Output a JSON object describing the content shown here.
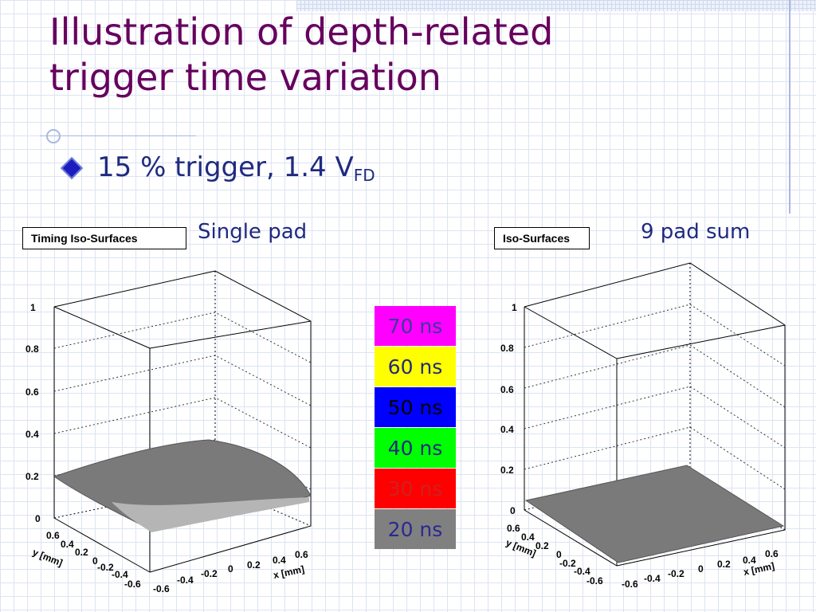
{
  "slide": {
    "title_line1": "Illustration of depth-related",
    "title_line2": "trigger time variation",
    "bullet_main": "15 % trigger, 1.4 V",
    "bullet_sub": "FD"
  },
  "left_plot": {
    "box_label": "Timing Iso-Surfaces",
    "caption": "Single pad",
    "z_ticks": [
      "1",
      "0.8",
      "0.6",
      "0.4",
      "0.2",
      "0"
    ],
    "y_ticks": [
      "0.6",
      "0.4",
      "0.2",
      "0",
      "-0.2",
      "-0.4",
      "-0.6"
    ],
    "x_ticks": [
      "-0.6",
      "-0.4",
      "-0.2",
      "0",
      "0.2",
      "0.4",
      "0.6"
    ],
    "y_title": "y [mm]",
    "x_title": "x [mm]"
  },
  "right_plot": {
    "box_label": "Iso-Surfaces",
    "caption": "9 pad sum",
    "z_ticks": [
      "1",
      "0.8",
      "0.6",
      "0.4",
      "0.2",
      "0"
    ],
    "y_ticks": [
      "0.6",
      "0.4",
      "0.2",
      "0",
      "-0.2",
      "-0.4",
      "-0.6"
    ],
    "x_ticks": [
      "-0.6",
      "-0.4",
      "-0.2",
      "0",
      "0.2",
      "0.4",
      "0.6"
    ],
    "y_title": "y [mm]",
    "x_title": "x [mm]"
  },
  "legend": [
    {
      "label": "70 ns",
      "bg": "#ff00ff",
      "fg": "#3b3b9e"
    },
    {
      "label": "60 ns",
      "bg": "#ffff00",
      "fg": "#1f2a80"
    },
    {
      "label": "50 ns",
      "bg": "#0000ff",
      "fg": "#000000"
    },
    {
      "label": "40 ns",
      "bg": "#00ff00",
      "fg": "#1f2a80"
    },
    {
      "label": "30 ns",
      "bg": "#ff0000",
      "fg": "#cc2222"
    },
    {
      "label": "20 ns",
      "bg": "#808080",
      "fg": "#2a2a90"
    }
  ]
}
